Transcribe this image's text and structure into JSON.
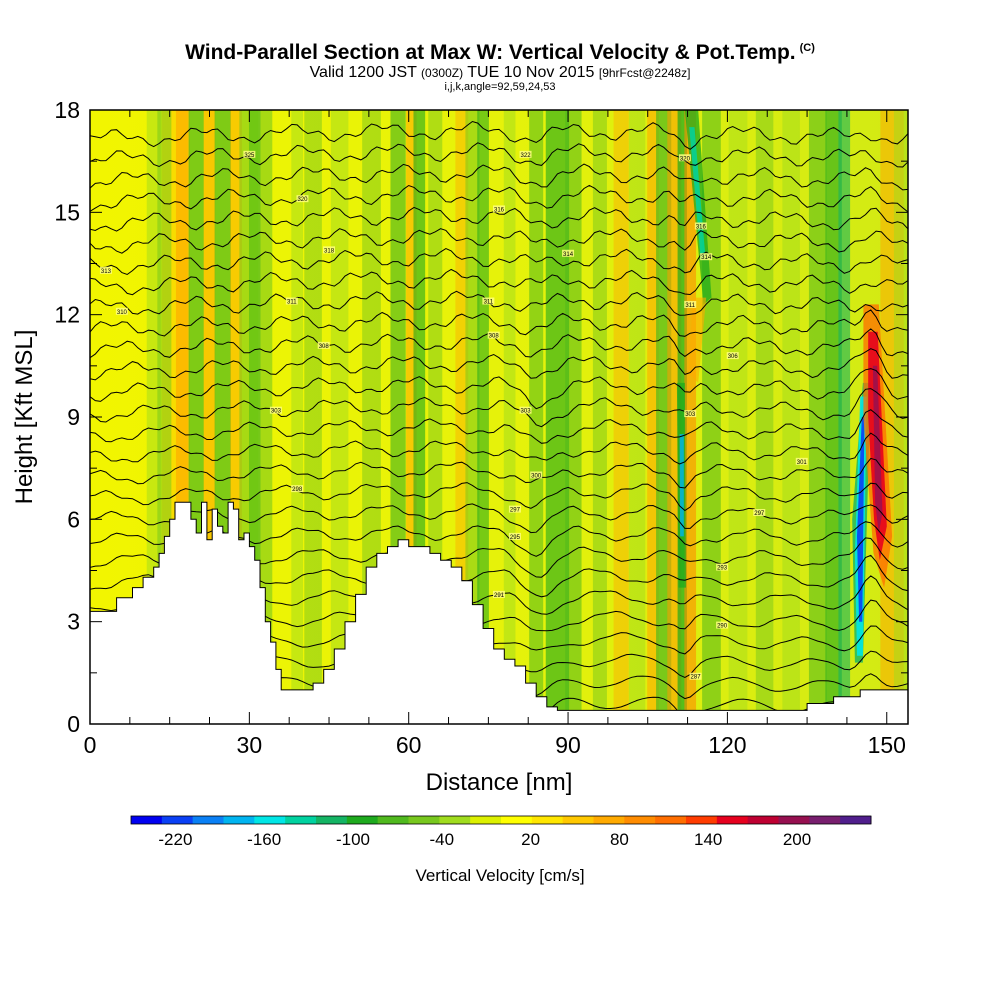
{
  "header": {
    "title": "Wind-Parallel Section at Max W: Vertical Velocity & Pot.Temp.",
    "title_mark": "(C)",
    "valid_prefix": "Valid 1200 JST",
    "valid_utc": "(0300Z)",
    "valid_date": "TUE 10 Nov 2015",
    "forecast": "[9hrFcst@2248z]",
    "indices": "i,j,k,angle=92,59,24,53"
  },
  "chart_data": {
    "type": "heatmap",
    "xlabel": "Distance [nm]",
    "ylabel": "Height [Kft MSL]",
    "xlim": [
      0,
      154
    ],
    "ylim": [
      0,
      18
    ],
    "x_ticks": [
      0,
      30,
      60,
      90,
      120,
      150
    ],
    "y_ticks": [
      0,
      3,
      6,
      9,
      12,
      15,
      18
    ],
    "grid": false,
    "colorbar": {
      "label": "Vertical Velocity [cm/s]",
      "tick_labels": [
        "-220",
        "-160",
        "-100",
        "-40",
        "20",
        "80",
        "140",
        "200"
      ],
      "tick_values": [
        -220,
        -160,
        -100,
        -40,
        20,
        80,
        140,
        200
      ],
      "range": [
        -250,
        250
      ],
      "colors": [
        "#0000f0",
        "#0a40f5",
        "#0a80f5",
        "#00b4f0",
        "#00e6e6",
        "#00d2a0",
        "#14b464",
        "#1eaa1e",
        "#50b91e",
        "#78c81e",
        "#a0dc1e",
        "#dcf000",
        "#ffff00",
        "#ffe600",
        "#ffc800",
        "#ffaa00",
        "#ff8c00",
        "#ff6e00",
        "#ff3c00",
        "#e6001e",
        "#be0032",
        "#961050",
        "#781e6e",
        "#501e8c"
      ]
    },
    "terrain_kft": [
      [
        0,
        3.3
      ],
      [
        3,
        3.3
      ],
      [
        5,
        3.7
      ],
      [
        8,
        4.0
      ],
      [
        10,
        4.3
      ],
      [
        12,
        4.6
      ],
      [
        13,
        5.0
      ],
      [
        14,
        5.5
      ],
      [
        15,
        6.0
      ],
      [
        16,
        6.5
      ],
      [
        18,
        6.5
      ],
      [
        19,
        6.0
      ],
      [
        20,
        5.6
      ],
      [
        21,
        6.5
      ],
      [
        22,
        5.4
      ],
      [
        23,
        6.3
      ],
      [
        24,
        5.8
      ],
      [
        25,
        5.6
      ],
      [
        26,
        6.5
      ],
      [
        27,
        6.3
      ],
      [
        28,
        5.4
      ],
      [
        29,
        5.6
      ],
      [
        30,
        5.2
      ],
      [
        31,
        4.8
      ],
      [
        32,
        4.0
      ],
      [
        33,
        3.0
      ],
      [
        34,
        2.4
      ],
      [
        35,
        1.6
      ],
      [
        36,
        1.0
      ],
      [
        40,
        1.0
      ],
      [
        42,
        1.2
      ],
      [
        44,
        1.6
      ],
      [
        46,
        2.2
      ],
      [
        48,
        3.0
      ],
      [
        50,
        3.8
      ],
      [
        52,
        4.6
      ],
      [
        54,
        5.0
      ],
      [
        56,
        5.2
      ],
      [
        58,
        5.4
      ],
      [
        60,
        5.2
      ],
      [
        62,
        5.2
      ],
      [
        64,
        5.0
      ],
      [
        66,
        4.8
      ],
      [
        68,
        4.6
      ],
      [
        70,
        4.2
      ],
      [
        72,
        3.5
      ],
      [
        74,
        2.8
      ],
      [
        76,
        2.2
      ],
      [
        78,
        1.9
      ],
      [
        80,
        1.7
      ],
      [
        82,
        1.2
      ],
      [
        84,
        0.8
      ],
      [
        86,
        0.5
      ],
      [
        88,
        0.4
      ],
      [
        120,
        0.4
      ],
      [
        130,
        0.4
      ],
      [
        135,
        0.6
      ],
      [
        140,
        0.8
      ],
      [
        145,
        1.0
      ],
      [
        150,
        1.0
      ],
      [
        154,
        1.0
      ]
    ],
    "theta_labels": [
      {
        "x": 30,
        "y": 16.7,
        "text": "325"
      },
      {
        "x": 40,
        "y": 15.4,
        "text": "320"
      },
      {
        "x": 45,
        "y": 13.9,
        "text": "318"
      },
      {
        "x": 77,
        "y": 15.1,
        "text": "316"
      },
      {
        "x": 82,
        "y": 16.7,
        "text": "322"
      },
      {
        "x": 90,
        "y": 13.8,
        "text": "314"
      },
      {
        "x": 112,
        "y": 16.6,
        "text": "320"
      },
      {
        "x": 115,
        "y": 14.6,
        "text": "316"
      },
      {
        "x": 116,
        "y": 13.7,
        "text": "314"
      },
      {
        "x": 113,
        "y": 12.3,
        "text": "311"
      },
      {
        "x": 75,
        "y": 12.4,
        "text": "311"
      },
      {
        "x": 38,
        "y": 12.4,
        "text": "311"
      },
      {
        "x": 6,
        "y": 12.1,
        "text": "310"
      },
      {
        "x": 3,
        "y": 13.3,
        "text": "313"
      },
      {
        "x": 44,
        "y": 11.1,
        "text": "308"
      },
      {
        "x": 76,
        "y": 11.4,
        "text": "308"
      },
      {
        "x": 121,
        "y": 10.8,
        "text": "306"
      },
      {
        "x": 35,
        "y": 9.2,
        "text": "303"
      },
      {
        "x": 82,
        "y": 9.2,
        "text": "303"
      },
      {
        "x": 113,
        "y": 9.1,
        "text": "303"
      },
      {
        "x": 134,
        "y": 7.7,
        "text": "301"
      },
      {
        "x": 39,
        "y": 6.9,
        "text": "298"
      },
      {
        "x": 84,
        "y": 7.3,
        "text": "300"
      },
      {
        "x": 80,
        "y": 6.3,
        "text": "297"
      },
      {
        "x": 126,
        "y": 6.2,
        "text": "297"
      },
      {
        "x": 80,
        "y": 5.5,
        "text": "295"
      },
      {
        "x": 119,
        "y": 4.6,
        "text": "293"
      },
      {
        "x": 77,
        "y": 3.8,
        "text": "291"
      },
      {
        "x": 119,
        "y": 2.9,
        "text": "290"
      },
      {
        "x": 114,
        "y": 1.4,
        "text": "287"
      }
    ]
  }
}
